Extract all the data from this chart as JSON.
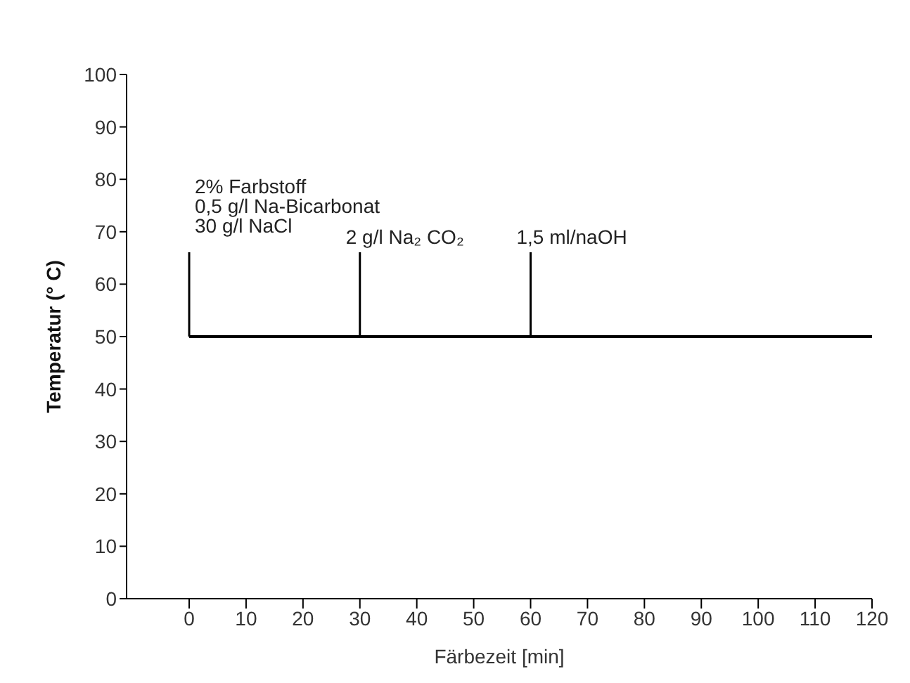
{
  "chart_data": {
    "type": "line",
    "xlabel": "Färbezeit [min]",
    "ylabel": "Temperatur (° C)",
    "x": [
      0,
      120
    ],
    "series": [
      {
        "color": "#000000",
        "values": [
          50,
          50
        ]
      }
    ],
    "xlim": [
      -11,
      120
    ],
    "xticks": [
      0,
      10,
      20,
      30,
      40,
      50,
      60,
      70,
      80,
      90,
      100,
      110,
      120
    ],
    "ylim": [
      0,
      100
    ],
    "yticks": [
      0,
      10,
      20,
      30,
      40,
      50,
      60,
      70,
      80,
      90,
      100
    ],
    "grid": false,
    "legend": false,
    "ref_lines": [
      {
        "axis": "x",
        "value": 0,
        "label": "2% Farbstoff\n0,5 g/l Na-Bicarbonat\n30 g/l NaCl"
      },
      {
        "axis": "x",
        "value": 30,
        "label": "2 g/l Na₂ CO₂"
      },
      {
        "axis": "x",
        "value": 60,
        "label": "1,5 ml/naOH"
      }
    ]
  }
}
